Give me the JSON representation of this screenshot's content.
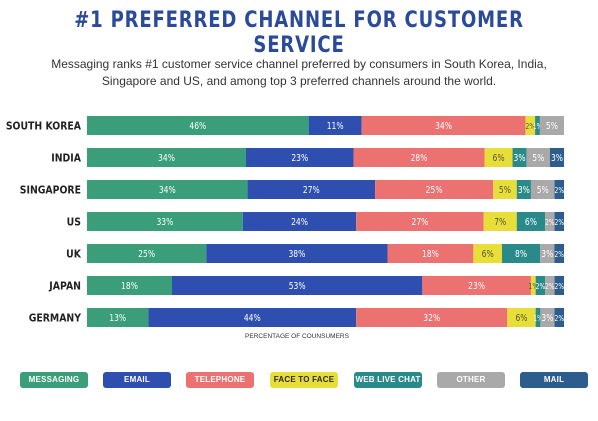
{
  "chart_data": {
    "type": "bar",
    "orientation": "horizontal-stacked-100",
    "title": "#1 PREFERRED CHANNEL FOR CUSTOMER SERVICE",
    "subtitle_lines": [
      "Messaging ranks #1 customer service channel preferred by consumers in South Korea, India,",
      "Singapore and US, and among top 3 preferred channels around the world."
    ],
    "xlabel": "PERCENTAGE OF COUNSUMERS",
    "legend_position": "bottom",
    "categories": [
      "SOUTH KOREA",
      "INDIA",
      "SINGAPORE",
      "US",
      "UK",
      "JAPAN",
      "GERMANY"
    ],
    "series": [
      {
        "name": "MESSAGING",
        "color": "#3a9e7a",
        "values": [
          46,
          34,
          34,
          33,
          25,
          18,
          13
        ]
      },
      {
        "name": "EMAIL",
        "color": "#2e4fb0",
        "values": [
          11,
          23,
          27,
          24,
          38,
          53,
          44
        ]
      },
      {
        "name": "TELEPHONE",
        "color": "#ec7272",
        "values": [
          34,
          28,
          25,
          27,
          18,
          23,
          32
        ]
      },
      {
        "name": "FACE TO FACE",
        "color": "#e8de3a",
        "values": [
          2,
          6,
          5,
          7,
          6,
          1,
          6
        ]
      },
      {
        "name": "WEB LIVE CHAT",
        "color": "#2a8a8a",
        "values": [
          1,
          3,
          3,
          6,
          8,
          2,
          1
        ]
      },
      {
        "name": "OTHER",
        "color": "#a9a9a9",
        "values": [
          5,
          5,
          5,
          2,
          3,
          2,
          3
        ]
      },
      {
        "name": "MAIL",
        "color": "#2c5d8c",
        "values": [
          0,
          3,
          2,
          2,
          2,
          2,
          2
        ]
      }
    ],
    "labels": [
      [
        "46%",
        "11%",
        "34%",
        "2%",
        "1%",
        "5%",
        ""
      ],
      [
        "34%",
        "23%",
        "28%",
        "6%",
        "3%",
        "5%",
        "3%"
      ],
      [
        "34%",
        "27%",
        "25%",
        "5%",
        "3%",
        "5%",
        "2%"
      ],
      [
        "33%",
        "24%",
        "27%",
        "7%",
        "6%",
        "2%",
        "2%"
      ],
      [
        "25%",
        "38%",
        "18%",
        "6%",
        "8%",
        "3%",
        "2%"
      ],
      [
        "18%",
        "53%",
        "23%",
        "1%",
        "2%",
        "2%",
        "2%"
      ],
      [
        "13%",
        "44%",
        "32%",
        "6%",
        "1%",
        "3%",
        "2%"
      ]
    ],
    "xlim": [
      0,
      100
    ]
  }
}
